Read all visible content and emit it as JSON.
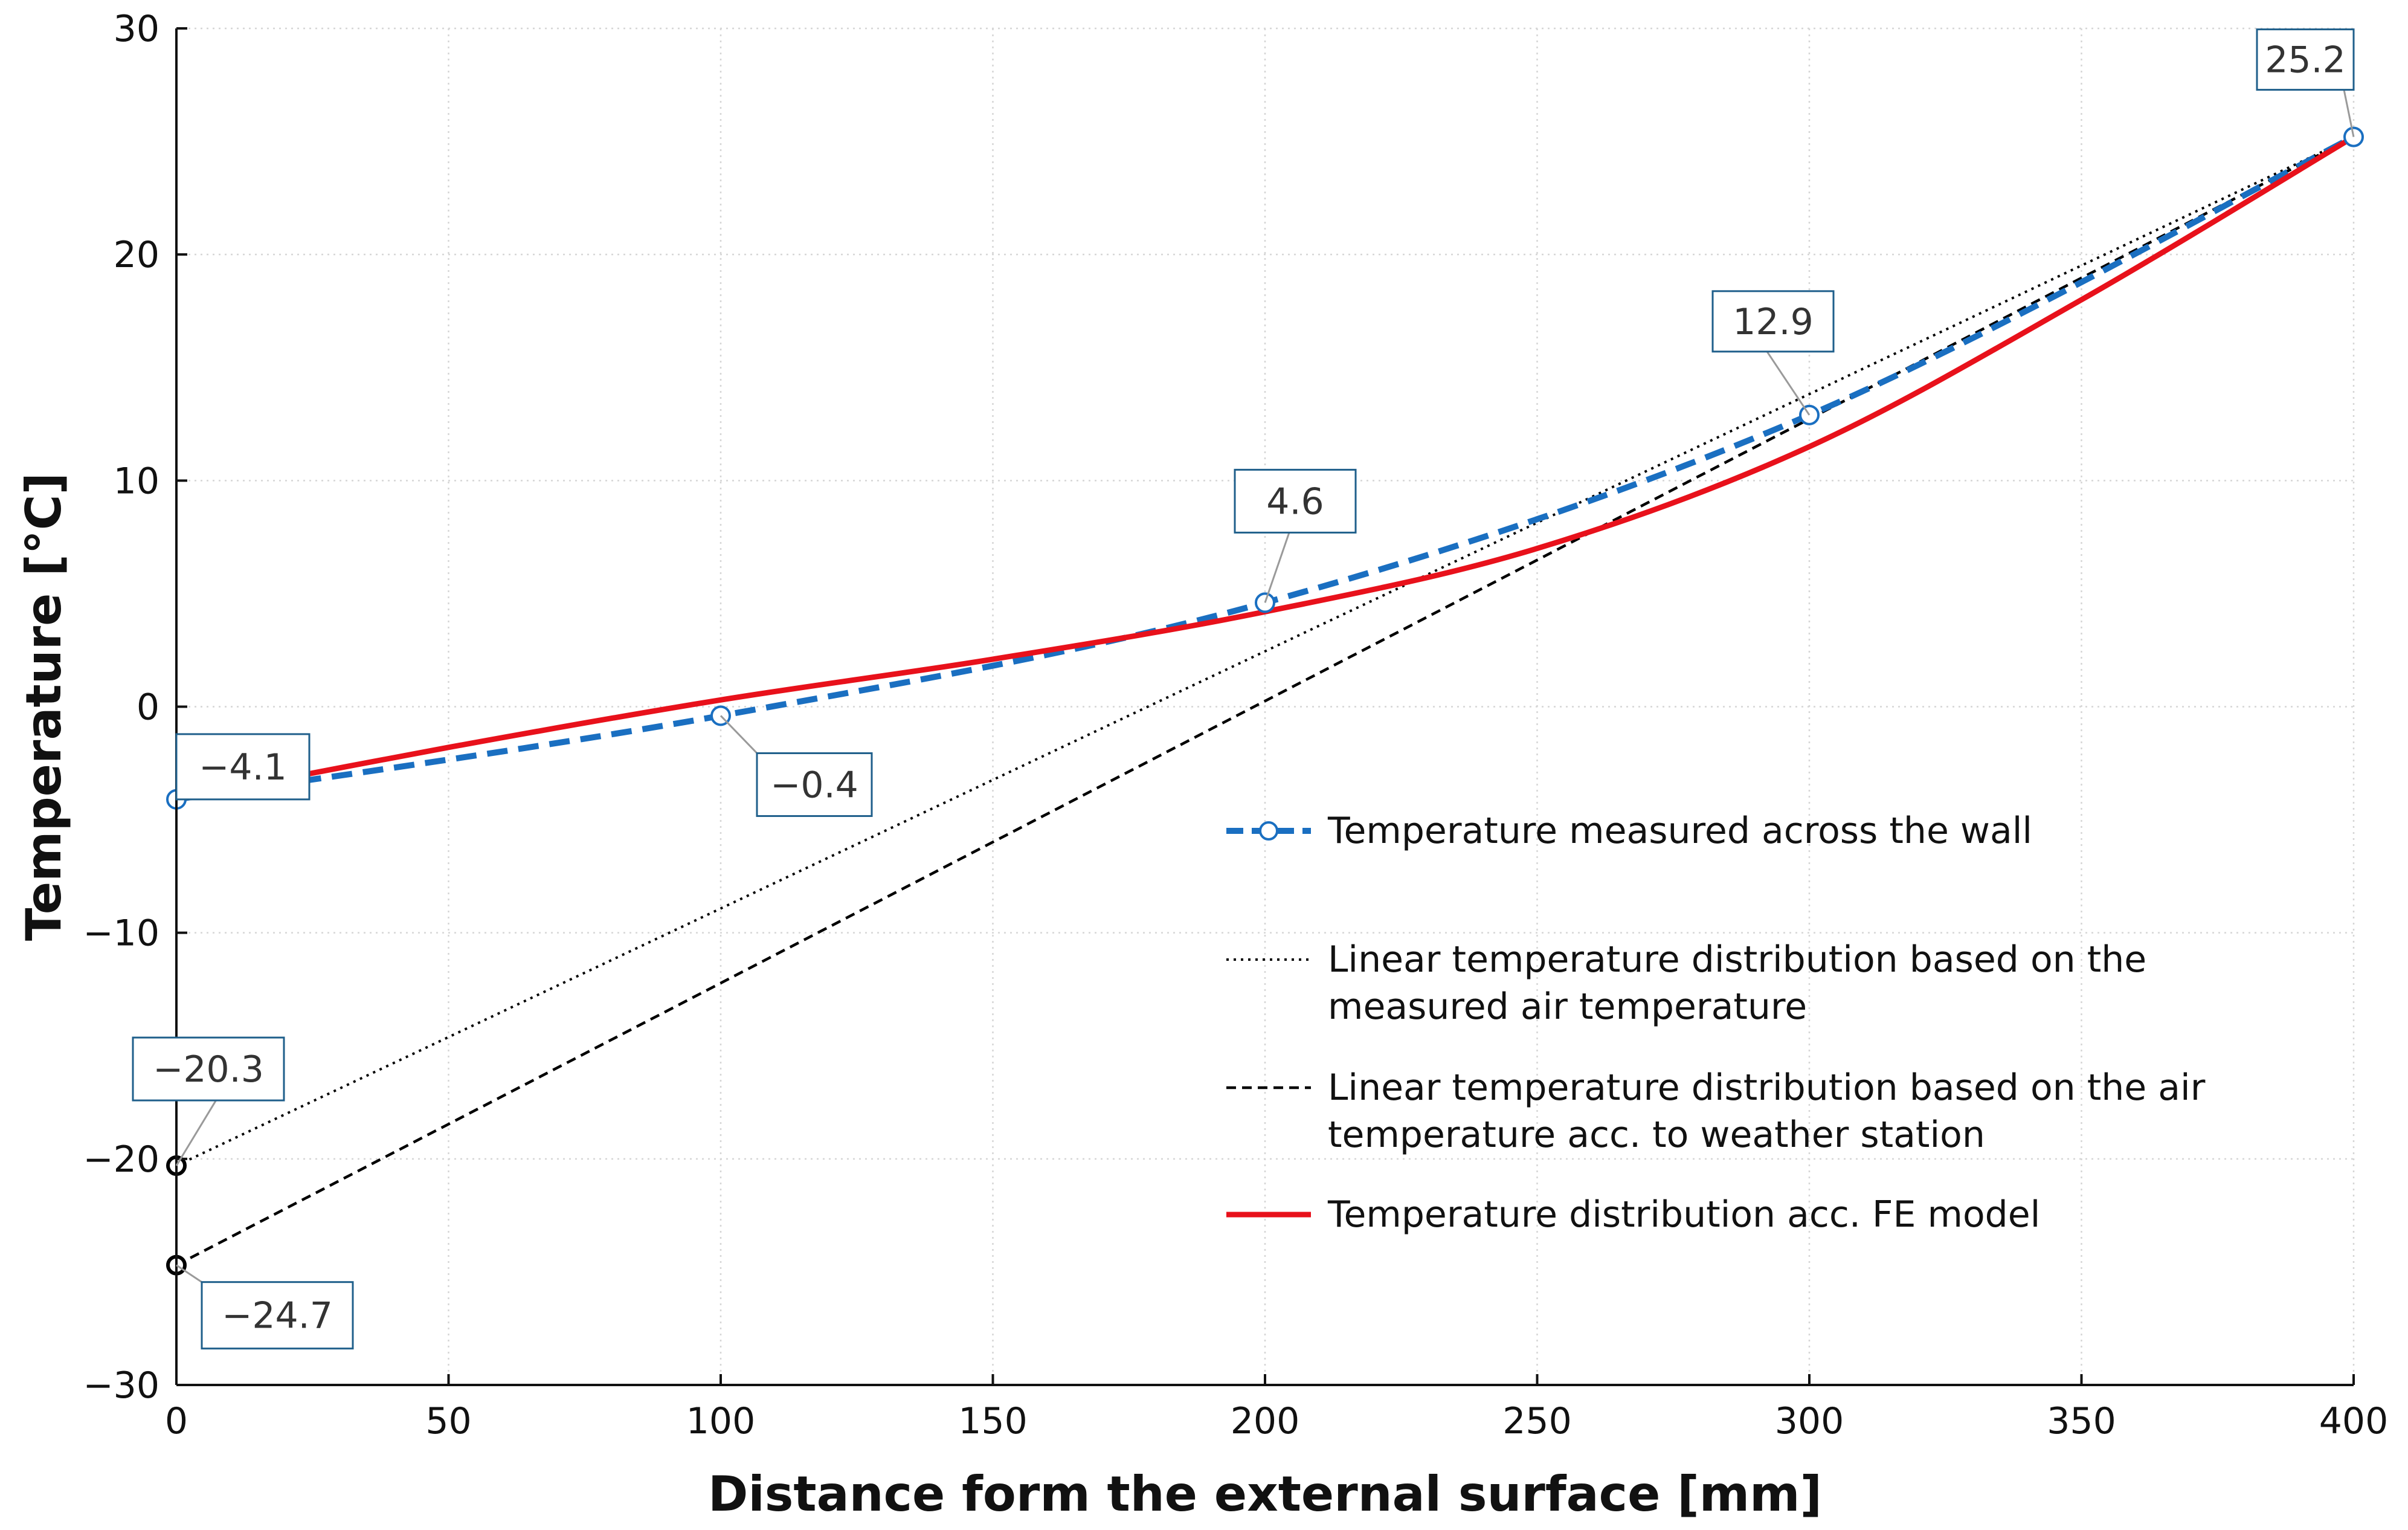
{
  "chart_data": {
    "type": "line",
    "xlabel": "Distance form the external surface [mm]",
    "ylabel": "Temperature [°C]",
    "xlim": [
      0,
      400
    ],
    "ylim": [
      -30,
      30
    ],
    "grid": true,
    "x_ticks": [
      {
        "value": 0,
        "label": "0"
      },
      {
        "value": 50,
        "label": "50"
      },
      {
        "value": 100,
        "label": "100"
      },
      {
        "value": 150,
        "label": "150"
      },
      {
        "value": 200,
        "label": "200"
      },
      {
        "value": 250,
        "label": "250"
      },
      {
        "value": 300,
        "label": "300"
      },
      {
        "value": 350,
        "label": "350"
      },
      {
        "value": 400,
        "label": "400"
      }
    ],
    "y_ticks": [
      {
        "value": 30,
        "label": "30"
      },
      {
        "value": 20,
        "label": "20"
      },
      {
        "value": 10,
        "label": "10"
      },
      {
        "value": 0,
        "label": "0"
      },
      {
        "value": -10,
        "label": "−10"
      },
      {
        "value": -20,
        "label": "−20"
      },
      {
        "value": -30,
        "label": "−30"
      }
    ],
    "legend_position": "center-right",
    "series": [
      {
        "id": "measured",
        "name": "Temperature measured across the wall",
        "style": "dashed-markers",
        "color": "#1a6fc1",
        "x": [
          0,
          100,
          200,
          300,
          400
        ],
        "y": [
          -4.1,
          -0.4,
          4.6,
          12.9,
          25.2
        ]
      },
      {
        "id": "linear-measured-air",
        "name": "Linear temperature distribution based on the measured air temperature",
        "style": "dotted",
        "color": "#000000",
        "x": [
          0,
          400
        ],
        "y": [
          -20.3,
          25.2
        ]
      },
      {
        "id": "linear-weather-station",
        "name": "Linear temperature distribution based on the air temperature acc. to weather station",
        "style": "dashed",
        "color": "#000000",
        "x": [
          0,
          400
        ],
        "y": [
          -24.7,
          25.2
        ]
      },
      {
        "id": "fe-model",
        "name": "Temperature distribution acc. FE model",
        "style": "solid",
        "color": "#e8111b",
        "x": [
          0,
          50,
          100,
          150,
          200,
          250,
          300,
          350,
          400
        ],
        "y": [
          -4.1,
          -1.8,
          0.3,
          2.1,
          4.2,
          7.0,
          11.5,
          18.0,
          25.2
        ]
      }
    ],
    "data_labels": [
      {
        "text": "−4.1",
        "x": 0,
        "y": -4.1,
        "color": "#1a6fc1"
      },
      {
        "text": "−0.4",
        "x": 100,
        "y": -0.4,
        "color": "#1a6fc1"
      },
      {
        "text": "4.6",
        "x": 200,
        "y": 4.6,
        "color": "#1a6fc1"
      },
      {
        "text": "12.9",
        "x": 300,
        "y": 12.9,
        "color": "#1a6fc1"
      },
      {
        "text": "25.2",
        "x": 400,
        "y": 25.2,
        "color": "#1a6fc1"
      },
      {
        "text": "−20.3",
        "x": 0,
        "y": -20.3,
        "color": "#000000"
      },
      {
        "text": "−24.7",
        "x": 0,
        "y": -24.7,
        "color": "#000000"
      }
    ],
    "legend": [
      {
        "series": "measured",
        "lines": [
          "Temperature measured across the wall"
        ]
      },
      {
        "series": "linear-measured-air",
        "lines": [
          "Linear temperature distribution based on the",
          "measured air temperature"
        ]
      },
      {
        "series": "linear-weather-station",
        "lines": [
          "Linear temperature distribution based on the air",
          "temperature acc. to weather station"
        ]
      },
      {
        "series": "fe-model",
        "lines": [
          "Temperature distribution acc. FE model"
        ]
      }
    ]
  }
}
